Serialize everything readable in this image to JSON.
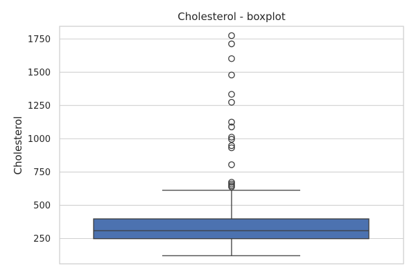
{
  "chart_data": {
    "type": "boxplot",
    "title": "Cholesterol - boxplot",
    "xlabel": "",
    "ylabel": "Cholesterol",
    "ylim": [
      60,
      1845
    ],
    "yticks": [
      250,
      500,
      750,
      1000,
      1250,
      1500,
      1750
    ],
    "grid": "horizontal",
    "box": {
      "min": 121,
      "q1": 249,
      "median": 309,
      "q3": 398,
      "max": 613,
      "fill": "#4c72b0"
    },
    "outliers": [
      638,
      648,
      660,
      673,
      805,
      932,
      948,
      996,
      1012,
      1089,
      1125,
      1274,
      1334,
      1479,
      1602,
      1713,
      1775
    ]
  },
  "colors": {
    "box_fill": "#4c72b0",
    "line": "#3c3c3c",
    "grid": "#d0d0d0",
    "frame": "#cccccc"
  }
}
